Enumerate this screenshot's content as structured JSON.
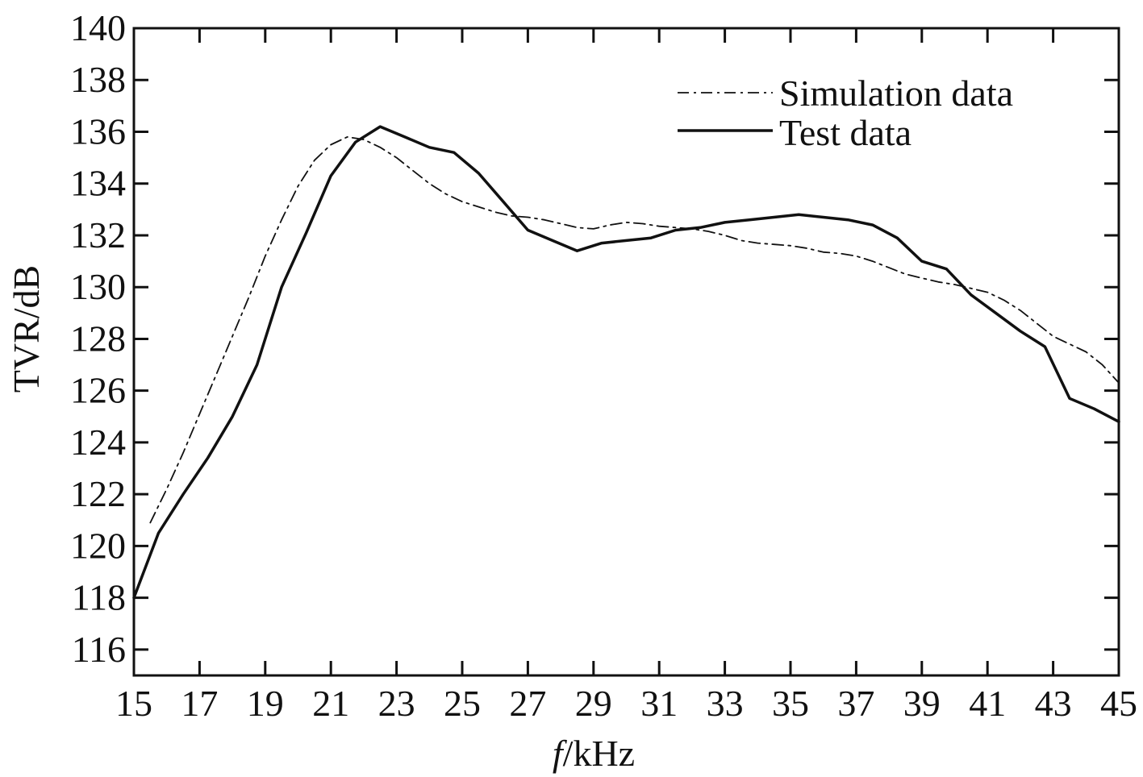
{
  "chart_data": {
    "type": "line",
    "title": "",
    "xlabel": "kHz",
    "xlabel_italic_prefix": "f",
    "xlabel_separator": "/",
    "ylabel": "TVR/dB",
    "xlim": [
      15,
      45
    ],
    "ylim": [
      115,
      140
    ],
    "x_ticks": [
      "15",
      "17",
      "19",
      "21",
      "23",
      "25",
      "27",
      "29",
      "31",
      "33",
      "35",
      "37",
      "39",
      "41",
      "43",
      "45"
    ],
    "y_ticks": [
      "116",
      "118",
      "120",
      "122",
      "124",
      "126",
      "128",
      "130",
      "132",
      "134",
      "136",
      "138",
      "140"
    ],
    "grid": false,
    "legend_position": "top-right",
    "series": [
      {
        "name": "Simulation data",
        "style": "dashdot",
        "color": "#111111",
        "x": [
          15.5,
          16.0,
          16.5,
          17.0,
          17.5,
          18.0,
          18.5,
          19.0,
          19.5,
          20.0,
          20.5,
          21.0,
          21.5,
          22.0,
          22.5,
          23.0,
          23.5,
          24.0,
          24.5,
          25.0,
          25.5,
          26.0,
          26.5,
          27.0,
          27.5,
          28.0,
          28.5,
          29.0,
          29.5,
          30.0,
          30.5,
          31.0,
          31.5,
          32.0,
          32.5,
          33.0,
          33.5,
          34.0,
          34.5,
          35.0,
          35.5,
          36.0,
          36.5,
          37.0,
          37.5,
          38.0,
          38.5,
          39.0,
          39.5,
          40.0,
          40.5,
          41.0,
          41.5,
          42.0,
          42.5,
          43.0,
          43.5,
          44.0,
          44.5,
          45.0
        ],
        "y": [
          120.9,
          122.2,
          123.6,
          125.1,
          126.6,
          128.1,
          129.6,
          131.2,
          132.6,
          133.9,
          134.9,
          135.5,
          135.8,
          135.7,
          135.4,
          135.0,
          134.5,
          134.0,
          133.6,
          133.3,
          133.1,
          132.9,
          132.75,
          132.7,
          132.6,
          132.45,
          132.3,
          132.25,
          132.4,
          132.5,
          132.45,
          132.35,
          132.3,
          132.25,
          132.15,
          132.0,
          131.8,
          131.7,
          131.65,
          131.6,
          131.5,
          131.35,
          131.3,
          131.2,
          131.0,
          130.75,
          130.5,
          130.35,
          130.2,
          130.1,
          129.95,
          129.8,
          129.5,
          129.1,
          128.6,
          128.1,
          127.8,
          127.5,
          127.0,
          126.3
        ]
      },
      {
        "name": "Test data",
        "style": "solid",
        "color": "#111111",
        "x": [
          15.0,
          15.75,
          16.5,
          17.25,
          18.0,
          18.75,
          19.5,
          20.25,
          21.0,
          21.75,
          22.5,
          23.25,
          24.0,
          24.75,
          25.5,
          26.25,
          27.0,
          27.75,
          28.5,
          29.25,
          30.0,
          30.75,
          31.5,
          32.25,
          33.0,
          33.75,
          34.5,
          35.25,
          36.0,
          36.75,
          37.5,
          38.25,
          39.0,
          39.75,
          40.5,
          41.25,
          42.0,
          42.75,
          43.5,
          44.25,
          45.0
        ],
        "y": [
          118.0,
          120.5,
          122.0,
          123.4,
          125.0,
          127.0,
          130.0,
          132.1,
          134.3,
          135.6,
          136.2,
          135.8,
          135.4,
          135.2,
          134.4,
          133.3,
          132.2,
          131.8,
          131.4,
          131.7,
          131.8,
          131.9,
          132.2,
          132.3,
          132.5,
          132.6,
          132.7,
          132.8,
          132.7,
          132.6,
          132.4,
          131.9,
          131.0,
          130.7,
          129.7,
          129.0,
          128.3,
          127.7,
          125.7,
          125.3,
          124.8
        ]
      }
    ]
  }
}
